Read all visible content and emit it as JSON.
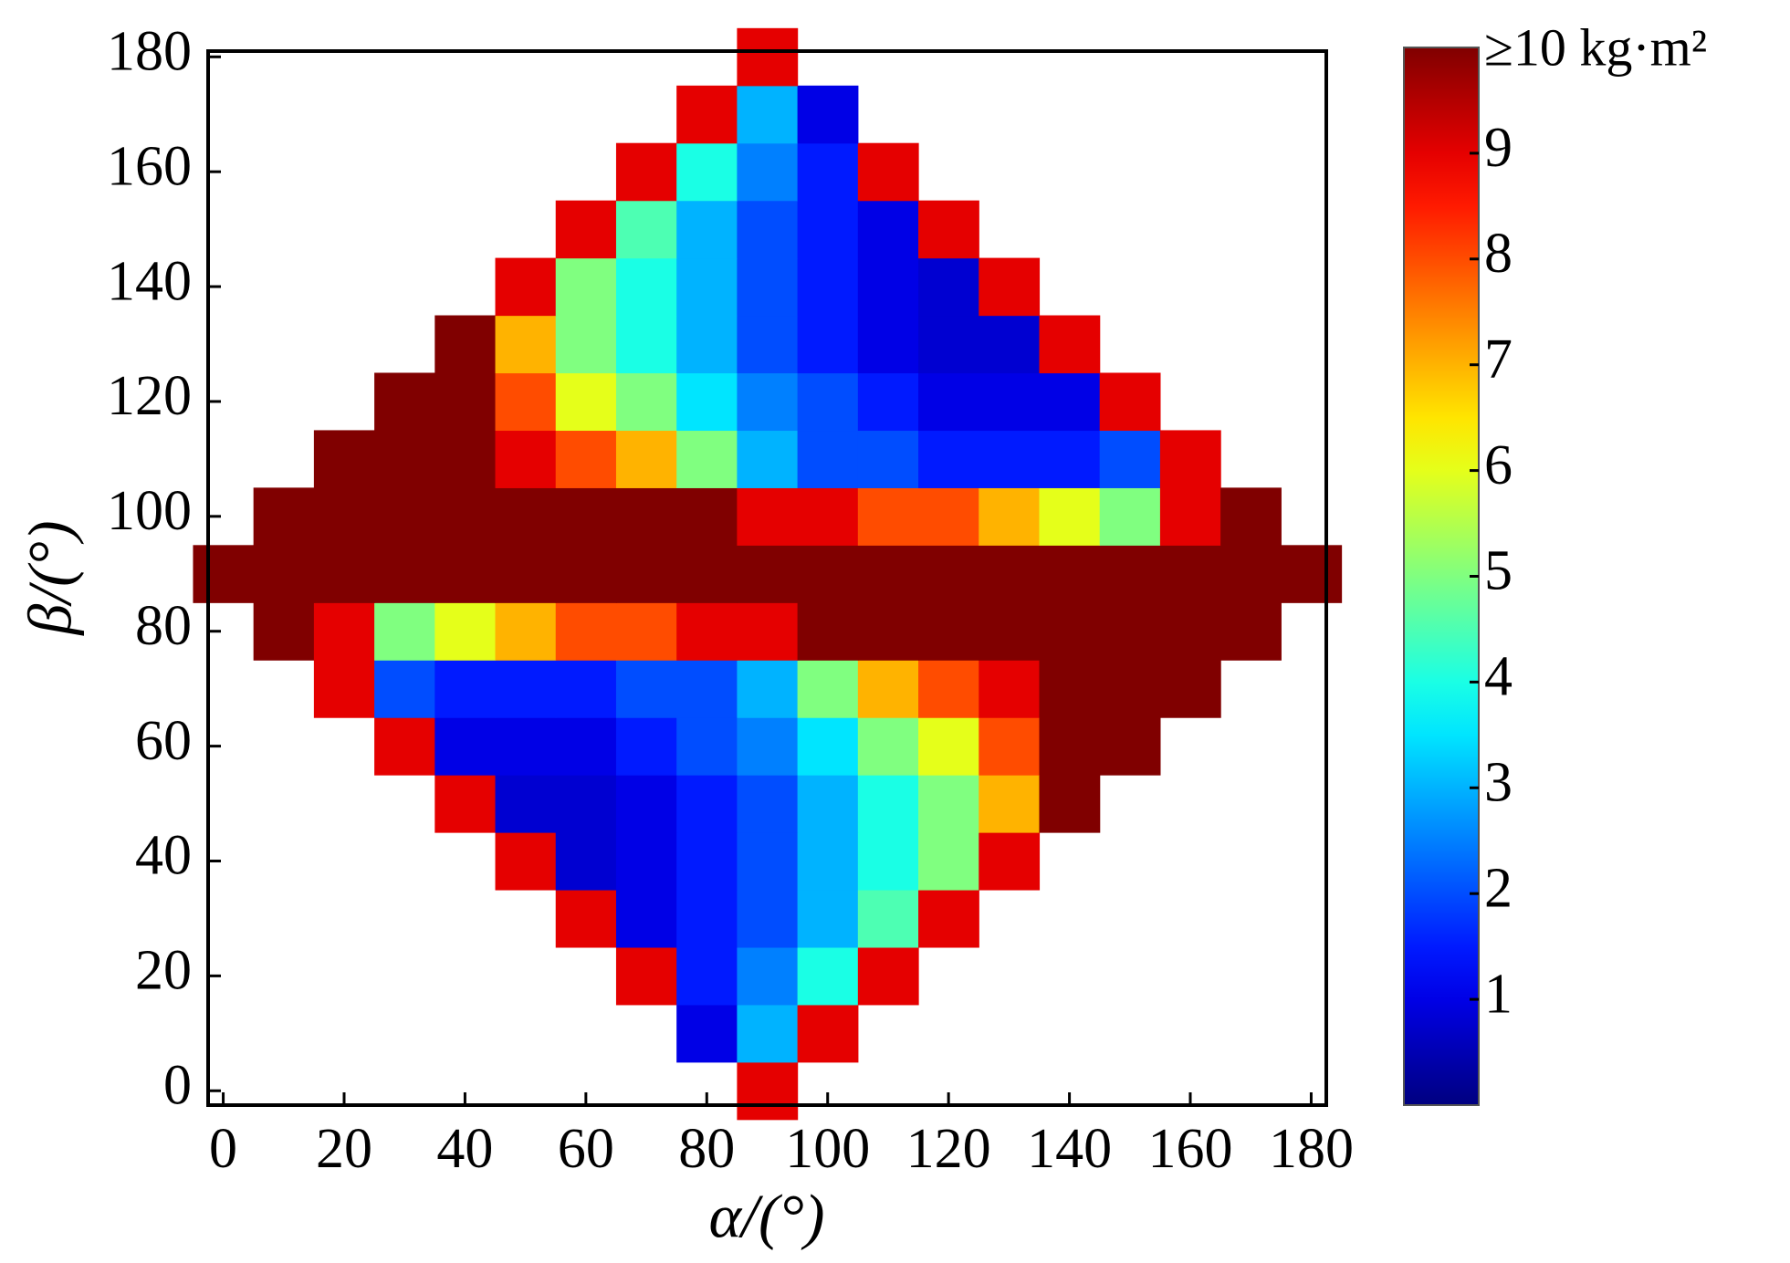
{
  "chart_data": {
    "type": "heatmap",
    "x_label": "α/(°)",
    "y_label": "β/(°)",
    "x": [
      0,
      10,
      20,
      30,
      40,
      50,
      60,
      70,
      80,
      90,
      100,
      110,
      120,
      130,
      140,
      150,
      160,
      170,
      180
    ],
    "y": [
      0,
      10,
      20,
      30,
      40,
      50,
      60,
      70,
      80,
      90,
      100,
      110,
      120,
      130,
      140,
      150,
      160,
      170,
      180
    ],
    "values": [
      [
        null,
        null,
        null,
        null,
        null,
        null,
        null,
        null,
        null,
        9,
        null,
        null,
        null,
        null,
        null,
        null,
        null,
        null,
        null
      ],
      [
        null,
        null,
        null,
        null,
        null,
        null,
        null,
        null,
        1,
        3,
        9,
        null,
        null,
        null,
        null,
        null,
        null,
        null,
        null
      ],
      [
        null,
        null,
        null,
        null,
        null,
        null,
        null,
        9,
        1.5,
        2.5,
        4,
        9,
        null,
        null,
        null,
        null,
        null,
        null,
        null
      ],
      [
        null,
        null,
        null,
        null,
        null,
        null,
        9,
        1,
        1.5,
        2,
        3,
        4.5,
        9,
        null,
        null,
        null,
        null,
        null,
        null
      ],
      [
        null,
        null,
        null,
        null,
        null,
        9,
        0.8,
        1,
        1.5,
        2,
        3,
        4,
        5,
        9,
        null,
        null,
        null,
        null,
        null
      ],
      [
        null,
        null,
        null,
        null,
        9,
        0.8,
        0.8,
        1,
        1.5,
        2,
        3,
        4,
        5,
        7,
        10,
        null,
        null,
        null,
        null
      ],
      [
        null,
        null,
        null,
        9,
        1,
        1,
        1,
        1.5,
        2,
        2.5,
        3.5,
        5,
        6,
        8,
        10,
        10,
        null,
        null,
        null
      ],
      [
        null,
        null,
        9,
        2,
        1.5,
        1.5,
        1.5,
        2,
        2,
        3,
        5,
        7,
        8,
        9,
        10,
        10,
        10,
        null,
        null
      ],
      [
        null,
        10,
        9,
        5,
        6,
        7,
        8,
        8,
        9,
        9,
        10,
        10,
        10,
        10,
        10,
        10,
        10,
        10,
        null
      ],
      [
        10,
        10,
        10,
        10,
        10,
        10,
        10,
        10,
        10,
        10,
        10,
        10,
        10,
        10,
        10,
        10,
        10,
        10,
        10
      ],
      [
        null,
        10,
        10,
        10,
        10,
        10,
        10,
        10,
        10,
        9,
        9,
        8,
        8,
        7,
        6,
        5,
        9,
        10,
        null
      ],
      [
        null,
        null,
        10,
        10,
        10,
        9,
        8,
        7,
        5,
        3,
        2,
        2,
        1.5,
        1.5,
        1.5,
        2,
        9,
        null,
        null
      ],
      [
        null,
        null,
        null,
        10,
        10,
        8,
        6,
        5,
        3.5,
        2.5,
        2,
        1.5,
        1,
        1,
        1,
        9,
        null,
        null,
        null
      ],
      [
        null,
        null,
        null,
        null,
        10,
        7,
        5,
        4,
        3,
        2,
        1.5,
        1,
        0.8,
        0.8,
        9,
        null,
        null,
        null,
        null
      ],
      [
        null,
        null,
        null,
        null,
        null,
        9,
        5,
        4,
        3,
        2,
        1.5,
        1,
        0.8,
        9,
        null,
        null,
        null,
        null,
        null
      ],
      [
        null,
        null,
        null,
        null,
        null,
        null,
        9,
        4.5,
        3,
        2,
        1.5,
        1,
        9,
        null,
        null,
        null,
        null,
        null,
        null
      ],
      [
        null,
        null,
        null,
        null,
        null,
        null,
        null,
        9,
        4,
        2.5,
        1.5,
        9,
        null,
        null,
        null,
        null,
        null,
        null,
        null
      ],
      [
        null,
        null,
        null,
        null,
        null,
        null,
        null,
        null,
        9,
        3,
        1,
        null,
        null,
        null,
        null,
        null,
        null,
        null,
        null
      ],
      [
        null,
        null,
        null,
        null,
        null,
        null,
        null,
        null,
        null,
        9,
        null,
        null,
        null,
        null,
        null,
        null,
        null,
        null,
        null
      ]
    ],
    "colormap": "jet",
    "xlim": [
      -2.5,
      182.5
    ],
    "ylim": [
      -2.5,
      181
    ],
    "xticks": [
      0,
      20,
      40,
      60,
      80,
      100,
      120,
      140,
      160,
      180
    ],
    "yticks": [
      0,
      20,
      40,
      60,
      80,
      100,
      120,
      140,
      160,
      180
    ],
    "colorbar": {
      "lim": [
        0,
        10
      ],
      "ticks": [
        1,
        2,
        3,
        4,
        5,
        6,
        7,
        8,
        9
      ],
      "top_label": "≥10 kg·m²"
    }
  }
}
